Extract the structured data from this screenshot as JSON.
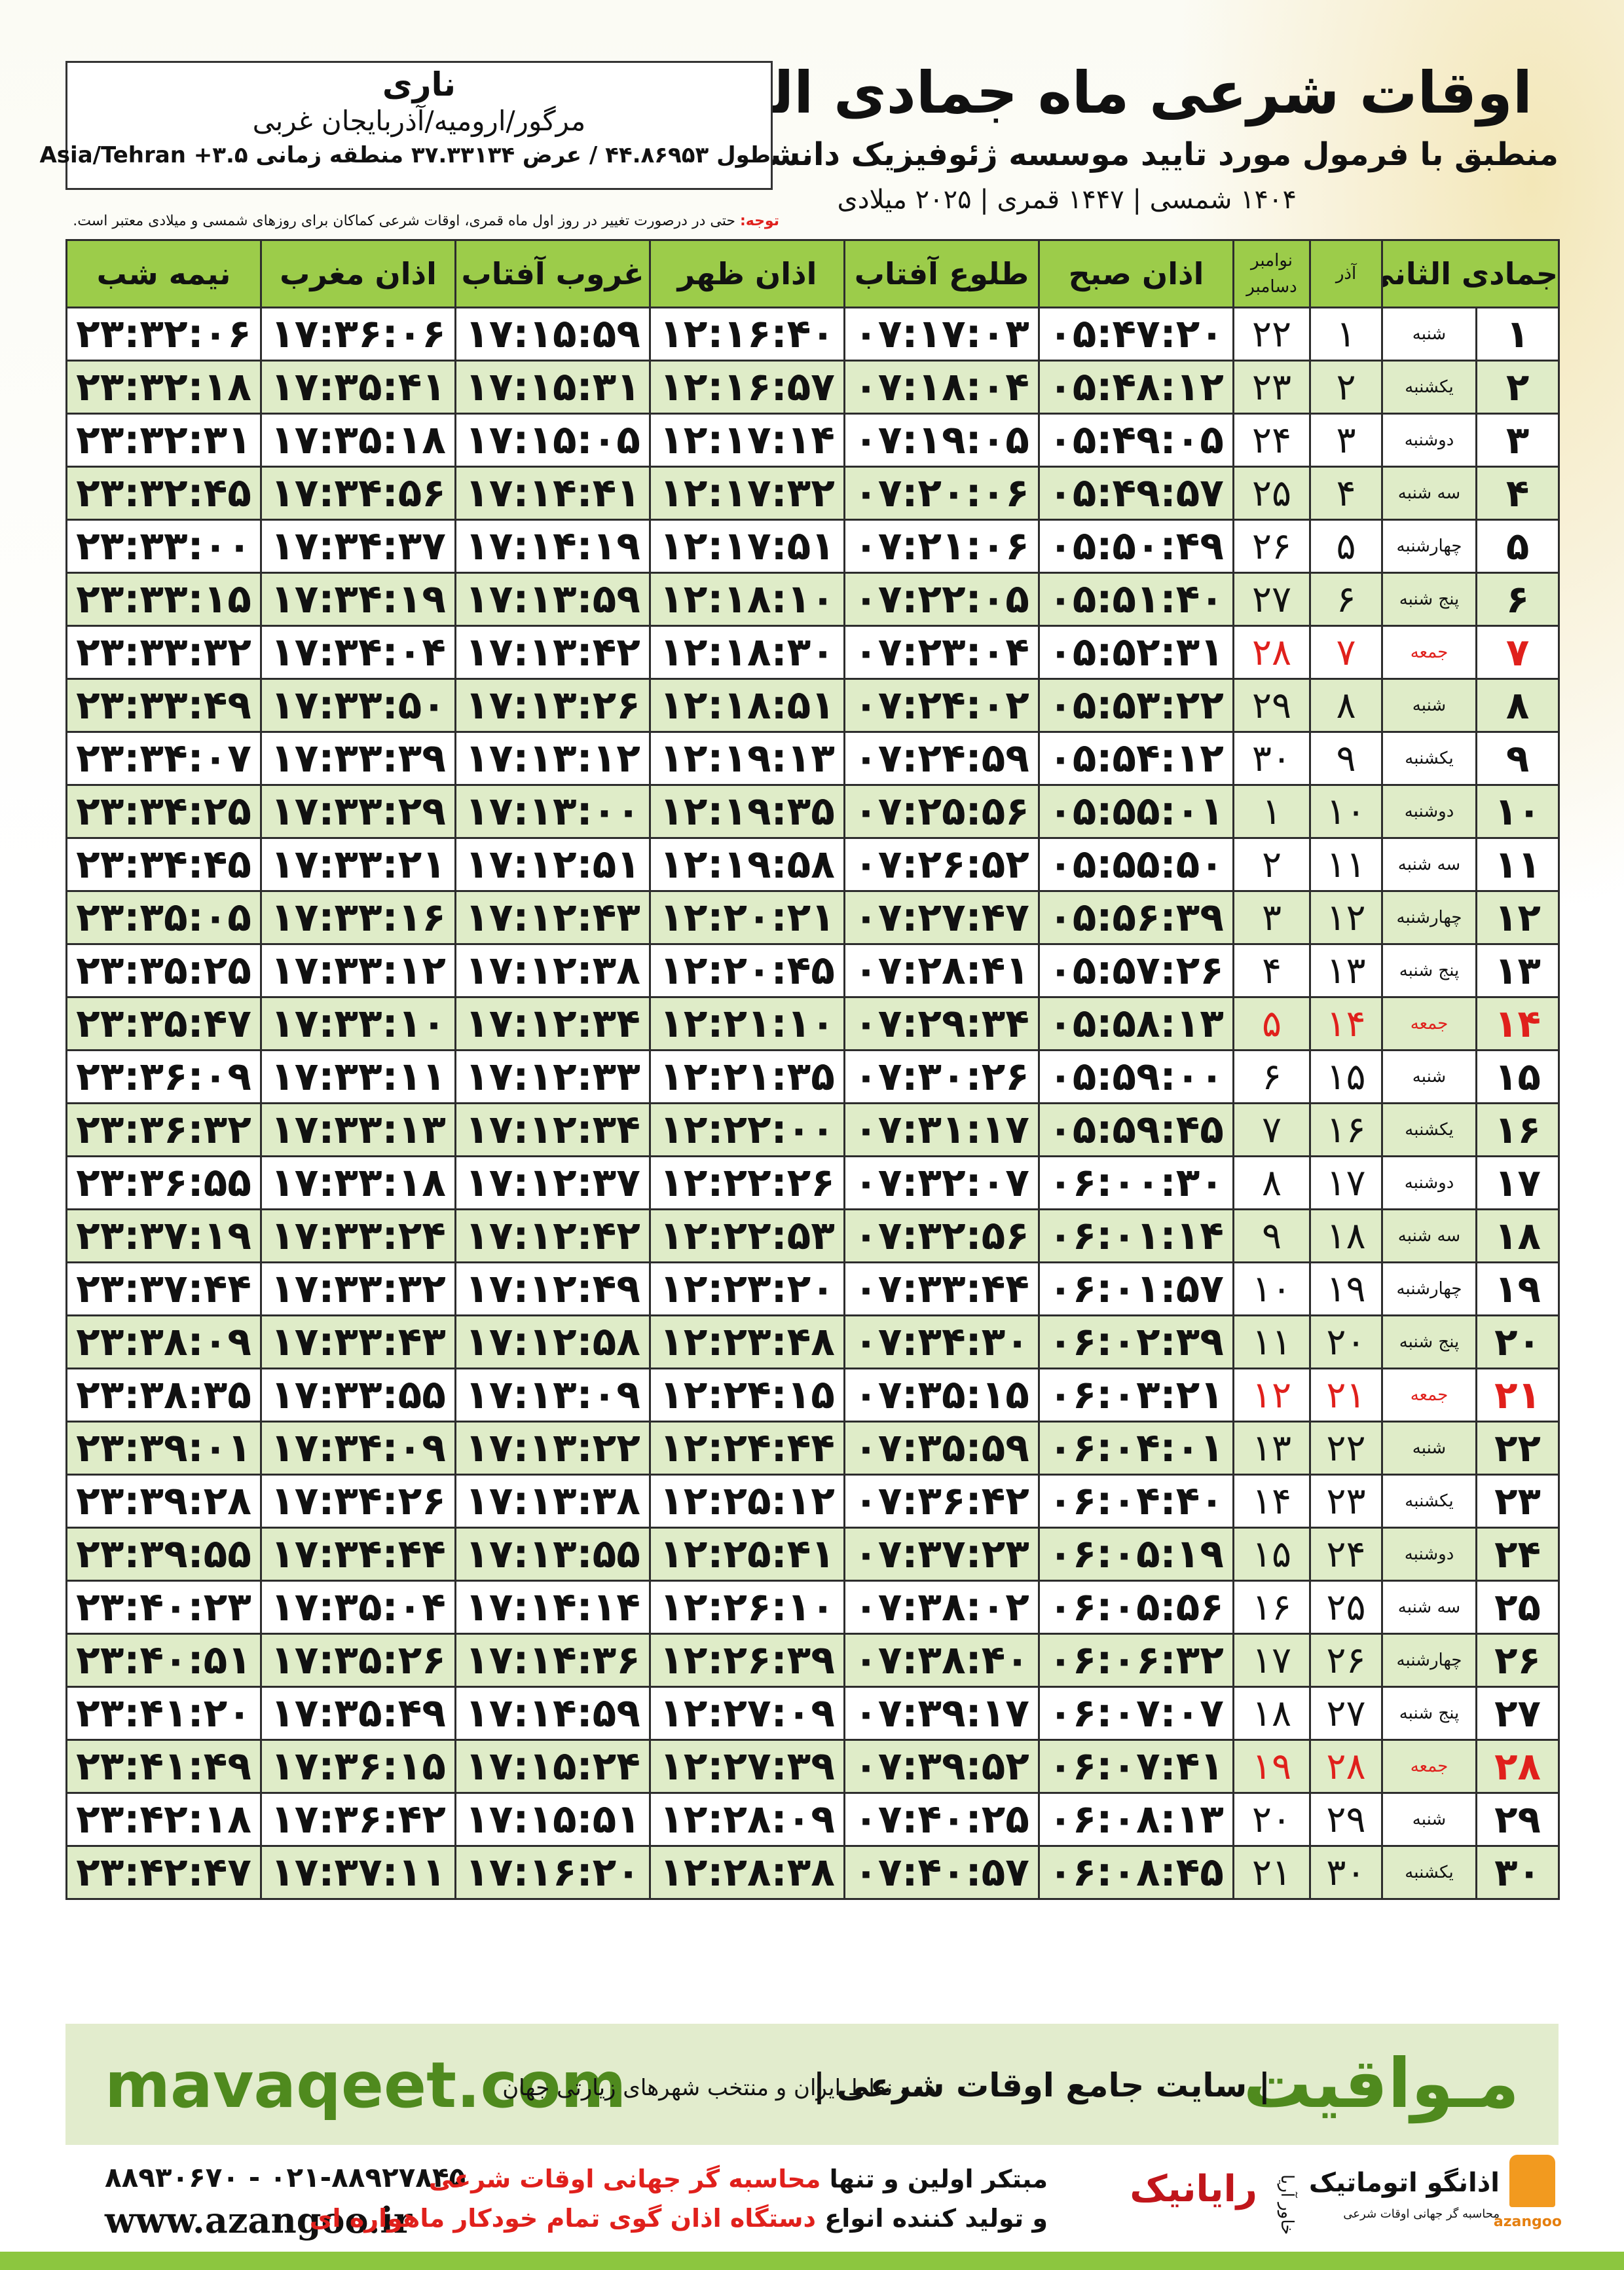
{
  "header": {
    "title": "اوقات شرعی ماه جمادی الثانی",
    "subtitle": "منطبق با فرمول مورد تایید موسسه ژئوفیزیک دانشگاه تهران",
    "dates": "۱۴۰۴ شمسی | ۱۴۴۷ قمری | ۲۰۲۵ میلادی"
  },
  "location": {
    "name": "ناری",
    "region": "مرگور/ارومیه/آذربایجان غربی",
    "coords": "طول ۴۴.۸۶۹۵۳ / عرض ۳۷.۳۳۱۳۴ منطقه زمانی ۳.۵+ Asia/Tehran"
  },
  "note": {
    "label": "توجه:",
    "text": "حتی در درصورت تغییر در روز اول ماه قمری، اوقات شرعی کماکان برای روزهای شمسی و میلادی معتبر است."
  },
  "table": {
    "month": "جمادی الثانی",
    "azar": "آذر",
    "gregorian": [
      "نوامبر",
      "دسامبر"
    ],
    "times": [
      "اذان صبح",
      "طلوع آفتاب",
      "اذان ظهر",
      "غروب آفتاب",
      "اذان مغرب",
      "نیمه شب"
    ],
    "rows": [
      {
        "hijri": "۱",
        "weekday": "شنبه",
        "azar": "۱",
        "gregorian": "۲۲",
        "times": [
          "۰۵:۴۷:۲۰",
          "۰۷:۱۷:۰۳",
          "۱۲:۱۶:۴۰",
          "۱۷:۱۵:۵۹",
          "۱۷:۳۶:۰۶",
          "۲۳:۳۲:۰۶"
        ]
      },
      {
        "hijri": "۲",
        "weekday": "یکشنبه",
        "azar": "۲",
        "gregorian": "۲۳",
        "times": [
          "۰۵:۴۸:۱۲",
          "۰۷:۱۸:۰۴",
          "۱۲:۱۶:۵۷",
          "۱۷:۱۵:۳۱",
          "۱۷:۳۵:۴۱",
          "۲۳:۳۲:۱۸"
        ]
      },
      {
        "hijri": "۳",
        "weekday": "دوشنبه",
        "azar": "۳",
        "gregorian": "۲۴",
        "times": [
          "۰۵:۴۹:۰۵",
          "۰۷:۱۹:۰۵",
          "۱۲:۱۷:۱۴",
          "۱۷:۱۵:۰۵",
          "۱۷:۳۵:۱۸",
          "۲۳:۳۲:۳۱"
        ]
      },
      {
        "hijri": "۴",
        "weekday": "سه شنبه",
        "azar": "۴",
        "gregorian": "۲۵",
        "times": [
          "۰۵:۴۹:۵۷",
          "۰۷:۲۰:۰۶",
          "۱۲:۱۷:۳۲",
          "۱۷:۱۴:۴۱",
          "۱۷:۳۴:۵۶",
          "۲۳:۳۲:۴۵"
        ]
      },
      {
        "hijri": "۵",
        "weekday": "چهارشنبه",
        "azar": "۵",
        "gregorian": "۲۶",
        "times": [
          "۰۵:۵۰:۴۹",
          "۰۷:۲۱:۰۶",
          "۱۲:۱۷:۵۱",
          "۱۷:۱۴:۱۹",
          "۱۷:۳۴:۳۷",
          "۲۳:۳۳:۰۰"
        ]
      },
      {
        "hijri": "۶",
        "weekday": "پنج شنبه",
        "azar": "۶",
        "gregorian": "۲۷",
        "times": [
          "۰۵:۵۱:۴۰",
          "۰۷:۲۲:۰۵",
          "۱۲:۱۸:۱۰",
          "۱۷:۱۳:۵۹",
          "۱۷:۳۴:۱۹",
          "۲۳:۳۳:۱۵"
        ]
      },
      {
        "hijri": "۷",
        "weekday": "جمعه",
        "azar": "۷",
        "gregorian": "۲۸",
        "times": [
          "۰۵:۵۲:۳۱",
          "۰۷:۲۳:۰۴",
          "۱۲:۱۸:۳۰",
          "۱۷:۱۳:۴۲",
          "۱۷:۳۴:۰۴",
          "۲۳:۳۳:۳۲"
        ],
        "highlight": true
      },
      {
        "hijri": "۸",
        "weekday": "شنبه",
        "azar": "۸",
        "gregorian": "۲۹",
        "times": [
          "۰۵:۵۳:۲۲",
          "۰۷:۲۴:۰۲",
          "۱۲:۱۸:۵۱",
          "۱۷:۱۳:۲۶",
          "۱۷:۳۳:۵۰",
          "۲۳:۳۳:۴۹"
        ]
      },
      {
        "hijri": "۹",
        "weekday": "یکشنبه",
        "azar": "۹",
        "gregorian": "۳۰",
        "times": [
          "۰۵:۵۴:۱۲",
          "۰۷:۲۴:۵۹",
          "۱۲:۱۹:۱۳",
          "۱۷:۱۳:۱۲",
          "۱۷:۳۳:۳۹",
          "۲۳:۳۴:۰۷"
        ]
      },
      {
        "hijri": "۱۰",
        "weekday": "دوشنبه",
        "azar": "۱۰",
        "gregorian": "۱",
        "times": [
          "۰۵:۵۵:۰۱",
          "۰۷:۲۵:۵۶",
          "۱۲:۱۹:۳۵",
          "۱۷:۱۳:۰۰",
          "۱۷:۳۳:۲۹",
          "۲۳:۳۴:۲۵"
        ]
      },
      {
        "hijri": "۱۱",
        "weekday": "سه شنبه",
        "azar": "۱۱",
        "gregorian": "۲",
        "times": [
          "۰۵:۵۵:۵۰",
          "۰۷:۲۶:۵۲",
          "۱۲:۱۹:۵۸",
          "۱۷:۱۲:۵۱",
          "۱۷:۳۳:۲۱",
          "۲۳:۳۴:۴۵"
        ]
      },
      {
        "hijri": "۱۲",
        "weekday": "چهارشنبه",
        "azar": "۱۲",
        "gregorian": "۳",
        "times": [
          "۰۵:۵۶:۳۹",
          "۰۷:۲۷:۴۷",
          "۱۲:۲۰:۲۱",
          "۱۷:۱۲:۴۳",
          "۱۷:۳۳:۱۶",
          "۲۳:۳۵:۰۵"
        ]
      },
      {
        "hijri": "۱۳",
        "weekday": "پنج شنبه",
        "azar": "۱۳",
        "gregorian": "۴",
        "times": [
          "۰۵:۵۷:۲۶",
          "۰۷:۲۸:۴۱",
          "۱۲:۲۰:۴۵",
          "۱۷:۱۲:۳۸",
          "۱۷:۳۳:۱۲",
          "۲۳:۳۵:۲۵"
        ]
      },
      {
        "hijri": "۱۴",
        "weekday": "جمعه",
        "azar": "۱۴",
        "gregorian": "۵",
        "times": [
          "۰۵:۵۸:۱۳",
          "۰۷:۲۹:۳۴",
          "۱۲:۲۱:۱۰",
          "۱۷:۱۲:۳۴",
          "۱۷:۳۳:۱۰",
          "۲۳:۳۵:۴۷"
        ],
        "highlight": true
      },
      {
        "hijri": "۱۵",
        "weekday": "شنبه",
        "azar": "۱۵",
        "gregorian": "۶",
        "times": [
          "۰۵:۵۹:۰۰",
          "۰۷:۳۰:۲۶",
          "۱۲:۲۱:۳۵",
          "۱۷:۱۲:۳۳",
          "۱۷:۳۳:۱۱",
          "۲۳:۳۶:۰۹"
        ]
      },
      {
        "hijri": "۱۶",
        "weekday": "یکشنبه",
        "azar": "۱۶",
        "gregorian": "۷",
        "times": [
          "۰۵:۵۹:۴۵",
          "۰۷:۳۱:۱۷",
          "۱۲:۲۲:۰۰",
          "۱۷:۱۲:۳۴",
          "۱۷:۳۳:۱۳",
          "۲۳:۳۶:۳۲"
        ]
      },
      {
        "hijri": "۱۷",
        "weekday": "دوشنبه",
        "azar": "۱۷",
        "gregorian": "۸",
        "times": [
          "۰۶:۰۰:۳۰",
          "۰۷:۳۲:۰۷",
          "۱۲:۲۲:۲۶",
          "۱۷:۱۲:۳۷",
          "۱۷:۳۳:۱۸",
          "۲۳:۳۶:۵۵"
        ]
      },
      {
        "hijri": "۱۸",
        "weekday": "سه شنبه",
        "azar": "۱۸",
        "gregorian": "۹",
        "times": [
          "۰۶:۰۱:۱۴",
          "۰۷:۳۲:۵۶",
          "۱۲:۲۲:۵۳",
          "۱۷:۱۲:۴۲",
          "۱۷:۳۳:۲۴",
          "۲۳:۳۷:۱۹"
        ]
      },
      {
        "hijri": "۱۹",
        "weekday": "چهارشنبه",
        "azar": "۱۹",
        "gregorian": "۱۰",
        "times": [
          "۰۶:۰۱:۵۷",
          "۰۷:۳۳:۴۴",
          "۱۲:۲۳:۲۰",
          "۱۷:۱۲:۴۹",
          "۱۷:۳۳:۳۲",
          "۲۳:۳۷:۴۴"
        ]
      },
      {
        "hijri": "۲۰",
        "weekday": "پنج شنبه",
        "azar": "۲۰",
        "gregorian": "۱۱",
        "times": [
          "۰۶:۰۲:۳۹",
          "۰۷:۳۴:۳۰",
          "۱۲:۲۳:۴۸",
          "۱۷:۱۲:۵۸",
          "۱۷:۳۳:۴۳",
          "۲۳:۳۸:۰۹"
        ]
      },
      {
        "hijri": "۲۱",
        "weekday": "جمعه",
        "azar": "۲۱",
        "gregorian": "۱۲",
        "times": [
          "۰۶:۰۳:۲۱",
          "۰۷:۳۵:۱۵",
          "۱۲:۲۴:۱۵",
          "۱۷:۱۳:۰۹",
          "۱۷:۳۳:۵۵",
          "۲۳:۳۸:۳۵"
        ],
        "highlight": true
      },
      {
        "hijri": "۲۲",
        "weekday": "شنبه",
        "azar": "۲۲",
        "gregorian": "۱۳",
        "times": [
          "۰۶:۰۴:۰۱",
          "۰۷:۳۵:۵۹",
          "۱۲:۲۴:۴۴",
          "۱۷:۱۳:۲۲",
          "۱۷:۳۴:۰۹",
          "۲۳:۳۹:۰۱"
        ]
      },
      {
        "hijri": "۲۳",
        "weekday": "یکشنبه",
        "azar": "۲۳",
        "gregorian": "۱۴",
        "times": [
          "۰۶:۰۴:۴۰",
          "۰۷:۳۶:۴۲",
          "۱۲:۲۵:۱۲",
          "۱۷:۱۳:۳۸",
          "۱۷:۳۴:۲۶",
          "۲۳:۳۹:۲۸"
        ]
      },
      {
        "hijri": "۲۴",
        "weekday": "دوشنبه",
        "azar": "۲۴",
        "gregorian": "۱۵",
        "times": [
          "۰۶:۰۵:۱۹",
          "۰۷:۳۷:۲۳",
          "۱۲:۲۵:۴۱",
          "۱۷:۱۳:۵۵",
          "۱۷:۳۴:۴۴",
          "۲۳:۳۹:۵۵"
        ]
      },
      {
        "hijri": "۲۵",
        "weekday": "سه شنبه",
        "azar": "۲۵",
        "gregorian": "۱۶",
        "times": [
          "۰۶:۰۵:۵۶",
          "۰۷:۳۸:۰۲",
          "۱۲:۲۶:۱۰",
          "۱۷:۱۴:۱۴",
          "۱۷:۳۵:۰۴",
          "۲۳:۴۰:۲۳"
        ]
      },
      {
        "hijri": "۲۶",
        "weekday": "چهارشنبه",
        "azar": "۲۶",
        "gregorian": "۱۷",
        "times": [
          "۰۶:۰۶:۳۲",
          "۰۷:۳۸:۴۰",
          "۱۲:۲۶:۳۹",
          "۱۷:۱۴:۳۶",
          "۱۷:۳۵:۲۶",
          "۲۳:۴۰:۵۱"
        ]
      },
      {
        "hijri": "۲۷",
        "weekday": "پنج شنبه",
        "azar": "۲۷",
        "gregorian": "۱۸",
        "times": [
          "۰۶:۰۷:۰۷",
          "۰۷:۳۹:۱۷",
          "۱۲:۲۷:۰۹",
          "۱۷:۱۴:۵۹",
          "۱۷:۳۵:۴۹",
          "۲۳:۴۱:۲۰"
        ]
      },
      {
        "hijri": "۲۸",
        "weekday": "جمعه",
        "azar": "۲۸",
        "gregorian": "۱۹",
        "times": [
          "۰۶:۰۷:۴۱",
          "۰۷:۳۹:۵۲",
          "۱۲:۲۷:۳۹",
          "۱۷:۱۵:۲۴",
          "۱۷:۳۶:۱۵",
          "۲۳:۴۱:۴۹"
        ],
        "highlight": true
      },
      {
        "hijri": "۲۹",
        "weekday": "شنبه",
        "azar": "۲۹",
        "gregorian": "۲۰",
        "times": [
          "۰۶:۰۸:۱۳",
          "۰۷:۴۰:۲۵",
          "۱۲:۲۸:۰۹",
          "۱۷:۱۵:۵۱",
          "۱۷:۳۶:۴۲",
          "۲۳:۴۲:۱۸"
        ]
      },
      {
        "hijri": "۳۰",
        "weekday": "یکشنبه",
        "azar": "۳۰",
        "gregorian": "۲۱",
        "times": [
          "۰۶:۰۸:۴۵",
          "۰۷:۴۰:۵۷",
          "۱۲:۲۸:۳۸",
          "۱۷:۱۶:۲۰",
          "۱۷:۳۷:۱۱",
          "۲۳:۴۲:۴۷"
        ]
      }
    ]
  },
  "banner": {
    "domain": "mavaqeet.com",
    "brand": "مـواقیت",
    "tagline": "| سایت جامع اوقات شرعی |",
    "scope": "همه نقاط ایران و منتخب شهرهای زیارتی جهان"
  },
  "footer": {
    "phones": "۰۲۱-۸۸۹۲۷۸۴۵ - ۸۸۹۳۰۶۷۰",
    "website": "www.azangoo.ir",
    "line1_a": "مبتکر اولین و تنها",
    "line1_b": "محاسبه گر جهانی اوقات شرعی",
    "line2_a": "و تولید کننده انواع",
    "line2_b": "دستگاه اذان گوی تمام خودکار ماهواره ای",
    "logo1": "رایانیک",
    "logo1_sub": "خاور آریا",
    "logo2": "اذانگو اتوماتیک",
    "logo2_sub": "محاسبه گر جهانی اوقات شرعی",
    "logo3": "azangoo"
  }
}
